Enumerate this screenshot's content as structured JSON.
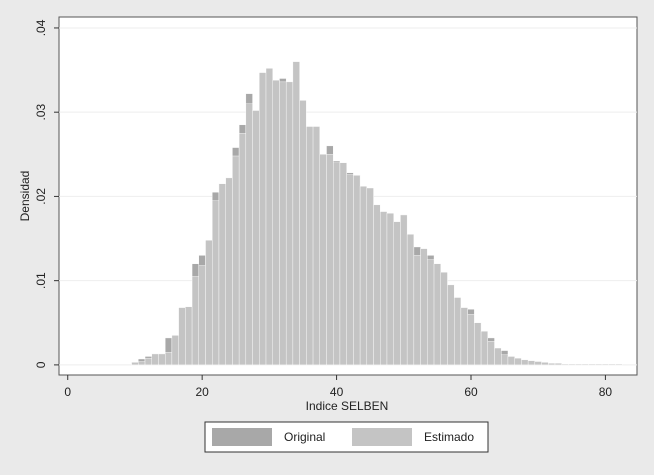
{
  "chart_data": {
    "type": "histogram",
    "xlabel": "Indice SELBEN",
    "ylabel": "Densidad",
    "bins": [
      9.5,
      10.5,
      11.5,
      12.5,
      13.5,
      14.5,
      15.5,
      16.5,
      17.5,
      18.5,
      19.5,
      20.5,
      21.5,
      22.5,
      23.5,
      24.5,
      25.5,
      26.5,
      27.5,
      28.5,
      29.5,
      30.5,
      31.5,
      32.5,
      33.5,
      34.5,
      35.5,
      36.5,
      37.5,
      38.5,
      39.5,
      40.5,
      41.5,
      42.5,
      43.5,
      44.5,
      45.5,
      46.5,
      47.5,
      48.5,
      49.5,
      50.5,
      51.5,
      52.5,
      53.5,
      54.5,
      55.5,
      56.5,
      57.5,
      58.5,
      59.5,
      60.5,
      61.5,
      62.5,
      63.5,
      64.5,
      65.5,
      66.5,
      67.5,
      68.5,
      69.5,
      70.5,
      71.5,
      72.5,
      73.5,
      74.5,
      75.5,
      76.5,
      77.5,
      78.5,
      79.5,
      80.5,
      81.5,
      82.5
    ],
    "series": [
      {
        "name": "Original",
        "color": "#a8a8a8",
        "values": [
          0.0003,
          0.0007,
          0.001,
          0.0013,
          0.0013,
          0.0032,
          0.0035,
          0.0068,
          0.0069,
          0.012,
          0.013,
          0.0148,
          0.0205,
          0.0215,
          0.0222,
          0.0258,
          0.0285,
          0.0322,
          0.0302,
          0.0347,
          0.0352,
          0.0338,
          0.034,
          0.0336,
          0.036,
          0.0314,
          0.0283,
          0.0283,
          0.025,
          0.026,
          0.0242,
          0.024,
          0.0228,
          0.0225,
          0.0212,
          0.021,
          0.019,
          0.0182,
          0.018,
          0.017,
          0.0178,
          0.0155,
          0.014,
          0.0138,
          0.013,
          0.012,
          0.011,
          0.0095,
          0.008,
          0.0068,
          0.0066,
          0.005,
          0.004,
          0.0032,
          0.002,
          0.0017,
          0.001,
          0.0008,
          0.0006,
          0.0005,
          0.0004,
          0.0003,
          0.0002,
          0.0002,
          0.0001,
          0.0001,
          0.0001,
          0.0001,
          0.0001,
          0.0001,
          0.0001,
          0.0001,
          0.0001
        ]
      },
      {
        "name": "Estimado",
        "color": "#c4c4c4",
        "values": [
          0.0003,
          0.0004,
          0.0008,
          0.0013,
          0.0013,
          0.0015,
          0.0035,
          0.0068,
          0.0069,
          0.0105,
          0.0118,
          0.0148,
          0.0195,
          0.0215,
          0.0222,
          0.0248,
          0.0275,
          0.031,
          0.0302,
          0.0347,
          0.0352,
          0.0338,
          0.0336,
          0.0336,
          0.036,
          0.0314,
          0.0283,
          0.0283,
          0.025,
          0.025,
          0.024,
          0.024,
          0.0226,
          0.0225,
          0.0212,
          0.021,
          0.019,
          0.0182,
          0.018,
          0.017,
          0.0178,
          0.0155,
          0.013,
          0.0138,
          0.0125,
          0.012,
          0.011,
          0.0095,
          0.008,
          0.0068,
          0.006,
          0.005,
          0.004,
          0.0028,
          0.002,
          0.0012,
          0.001,
          0.0008,
          0.0006,
          0.0005,
          0.0004,
          0.0003,
          0.0002,
          0.0002,
          0.0001,
          0.0001,
          0.0001,
          0.0001,
          0.0001,
          0.0001,
          0.0001,
          0.0001,
          0.0001
        ]
      }
    ],
    "xlim": [
      -1.3,
      84.7
    ],
    "ylim": [
      -0.0012,
      0.0413
    ],
    "xticks": [
      0,
      20,
      40,
      60,
      80
    ],
    "yticks": [
      0,
      {
        "value": 0.01,
        "label": ".01"
      },
      {
        "value": 0.02,
        "label": ".02"
      },
      {
        "value": 0.03,
        "label": ".03"
      },
      {
        "value": 0.04,
        "label": ".04"
      }
    ],
    "grid": true,
    "legend": "bottom"
  }
}
